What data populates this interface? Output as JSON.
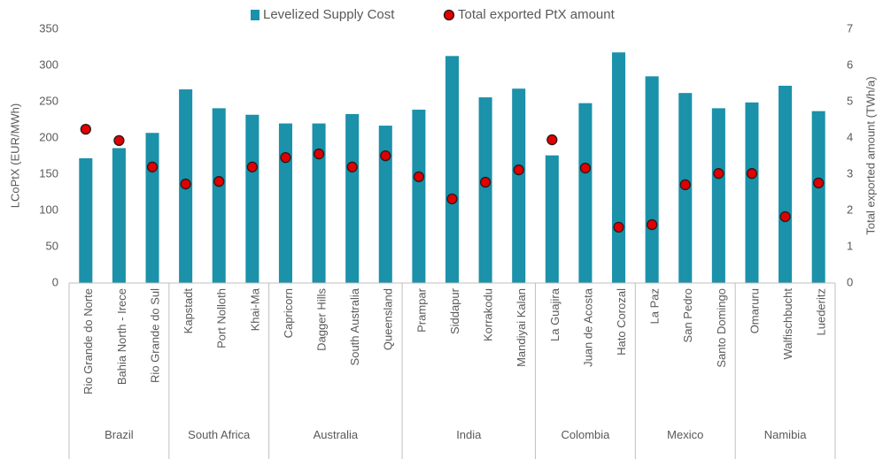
{
  "chart_data": {
    "type": "bar",
    "groups": [
      {
        "name": "Brazil",
        "categories": [
          "Rio Grande do Norte",
          "Bahia North - Irece",
          "Rio Grande do Sul"
        ]
      },
      {
        "name": "South Africa",
        "categories": [
          "Kapstadt",
          "Port Nolloth",
          "Khai-Ma"
        ]
      },
      {
        "name": "Australia",
        "categories": [
          "Capricorn",
          "Dagger Hills",
          "South Australia",
          "Queensland"
        ]
      },
      {
        "name": "India",
        "categories": [
          "Prampar",
          "Siddapur",
          "Korrakodu",
          "Mandiyai Kalan"
        ]
      },
      {
        "name": "Colombia",
        "categories": [
          "La Guajira",
          "Juan de Acosta",
          "Hato Corozal"
        ]
      },
      {
        "name": "Mexico",
        "categories": [
          "La Paz",
          "San Pedro",
          "Santo Domingo"
        ]
      },
      {
        "name": "Namibia",
        "categories": [
          "Omaruru",
          "Walfischbucht",
          "Luederitz"
        ]
      }
    ],
    "series": [
      {
        "name": "Levelized Supply Cost",
        "type": "bar",
        "color": "#1b91aa",
        "values": [
          172,
          186,
          207,
          267,
          241,
          232,
          220,
          220,
          233,
          217,
          239,
          313,
          256,
          268,
          176,
          248,
          318,
          285,
          262,
          241,
          249,
          272,
          237
        ]
      },
      {
        "name": "Total exported PtX amount",
        "type": "scatter",
        "axis": "y2",
        "color": "#e00000",
        "values": [
          4.24,
          3.93,
          3.2,
          2.73,
          2.8,
          3.2,
          3.46,
          3.56,
          3.2,
          3.51,
          2.93,
          2.32,
          2.78,
          3.12,
          3.95,
          3.17,
          1.54,
          1.61,
          2.71,
          3.02,
          3.02,
          1.83,
          2.76
        ]
      }
    ],
    "ylabel": "LCoPtX (EUR/MWh)",
    "y2label": "Total exported amount (TWh/a)",
    "ylim": [
      0,
      350
    ],
    "yticks": [
      0,
      50,
      100,
      150,
      200,
      250,
      300,
      350
    ],
    "y2lim": [
      0,
      7
    ],
    "y2ticks": [
      0,
      1,
      2,
      3,
      4,
      5,
      6,
      7
    ],
    "legend": "top"
  }
}
